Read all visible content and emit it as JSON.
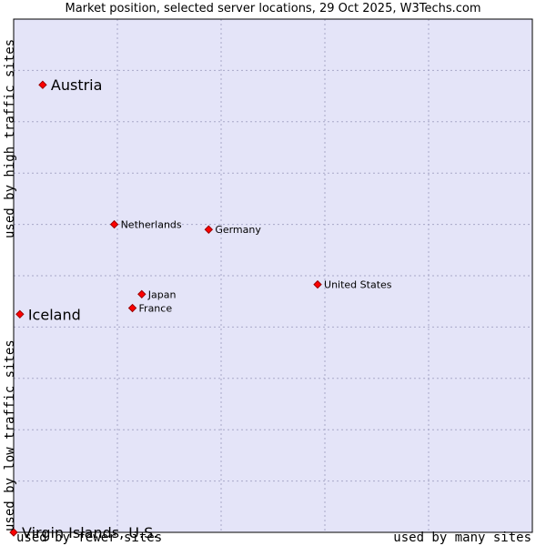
{
  "chart_data": {
    "type": "scatter",
    "title": "Market position, selected server locations, 29 Oct 2025, W3Techs.com",
    "y_axis_labels": {
      "high": "used by high traffic sites",
      "low": "used by low traffic sites"
    },
    "x_axis_labels": {
      "low": "used by fewer sites",
      "high": "used by many sites"
    },
    "xlim": [
      0,
      10
    ],
    "ylim": [
      0,
      10
    ],
    "grid": true,
    "colors": {
      "plot_background": "#e4e4f8",
      "grid": "#a8a8c8",
      "marker": "#ff0000",
      "marker_edge": "#990000"
    },
    "points": [
      {
        "label": "Austria",
        "x": 0.56,
        "y": 8.72,
        "emphasis": true
      },
      {
        "label": "Netherlands",
        "x": 1.94,
        "y": 6.0,
        "emphasis": false
      },
      {
        "label": "Germany",
        "x": 3.76,
        "y": 5.9,
        "emphasis": false
      },
      {
        "label": "United States",
        "x": 5.86,
        "y": 4.83,
        "emphasis": false
      },
      {
        "label": "Japan",
        "x": 2.47,
        "y": 4.64,
        "emphasis": false
      },
      {
        "label": "France",
        "x": 2.29,
        "y": 4.37,
        "emphasis": false
      },
      {
        "label": "Iceland",
        "x": 0.12,
        "y": 4.25,
        "emphasis": true
      },
      {
        "label": "Virgin Islands, U.S.",
        "x": 0.0,
        "y": 0.0,
        "emphasis": true
      }
    ]
  }
}
